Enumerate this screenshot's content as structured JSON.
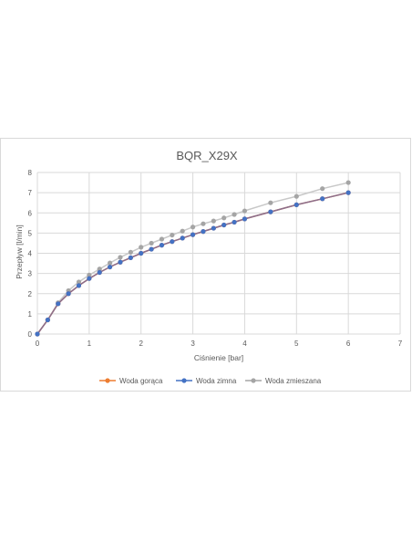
{
  "chart_data": {
    "type": "line",
    "title": "BQR_X29X",
    "xlabel": "Ciśnienie [bar]",
    "ylabel": "Przepływ [l/min]",
    "xlim": [
      0,
      7
    ],
    "ylim": [
      0,
      8
    ],
    "xticks": [
      "0",
      "1",
      "2",
      "3",
      "4",
      "5",
      "6",
      "7"
    ],
    "yticks": [
      "0",
      "1",
      "2",
      "3",
      "4",
      "5",
      "6",
      "7",
      "8"
    ],
    "grid": true,
    "legend_position": "bottom",
    "series": [
      {
        "name": "Woda gorąca",
        "color": "#ed7d31",
        "x": [
          0,
          0.2,
          0.4,
          0.6,
          0.8,
          1.0,
          1.2,
          1.4,
          1.6,
          1.8,
          2.0,
          2.2,
          2.4,
          2.6,
          2.8,
          3.0,
          3.2,
          3.4,
          3.6,
          3.8,
          4.0,
          4.5,
          5.0,
          5.5,
          6.0
        ],
        "y": [
          0,
          0.7,
          1.5,
          2.0,
          2.4,
          2.75,
          3.05,
          3.32,
          3.56,
          3.78,
          4.0,
          4.2,
          4.4,
          4.58,
          4.75,
          4.92,
          5.08,
          5.24,
          5.4,
          5.54,
          5.7,
          6.05,
          6.4,
          6.7,
          7.0
        ]
      },
      {
        "name": "Woda zimna",
        "color": "#4472c4",
        "x": [
          0,
          0.2,
          0.4,
          0.6,
          0.8,
          1.0,
          1.2,
          1.4,
          1.6,
          1.8,
          2.0,
          2.2,
          2.4,
          2.6,
          2.8,
          3.0,
          3.2,
          3.4,
          3.6,
          3.8,
          4.0,
          4.5,
          5.0,
          5.5,
          6.0
        ],
        "y": [
          0,
          0.7,
          1.5,
          2.0,
          2.4,
          2.75,
          3.05,
          3.32,
          3.56,
          3.78,
          4.0,
          4.2,
          4.4,
          4.58,
          4.75,
          4.92,
          5.08,
          5.24,
          5.4,
          5.54,
          5.7,
          6.05,
          6.4,
          6.7,
          7.0
        ]
      },
      {
        "name": "Woda zmieszana",
        "color": "#a5a5a5",
        "x": [
          0,
          0.2,
          0.4,
          0.6,
          0.8,
          1.0,
          1.2,
          1.4,
          1.6,
          1.8,
          2.0,
          2.2,
          2.4,
          2.6,
          2.8,
          3.0,
          3.2,
          3.4,
          3.6,
          3.8,
          4.0,
          4.5,
          5.0,
          5.5,
          6.0
        ],
        "y": [
          0,
          0.7,
          1.55,
          2.15,
          2.58,
          2.92,
          3.22,
          3.52,
          3.8,
          4.05,
          4.3,
          4.5,
          4.7,
          4.9,
          5.1,
          5.3,
          5.46,
          5.6,
          5.75,
          5.92,
          6.1,
          6.5,
          6.82,
          7.2,
          7.5
        ]
      }
    ]
  }
}
